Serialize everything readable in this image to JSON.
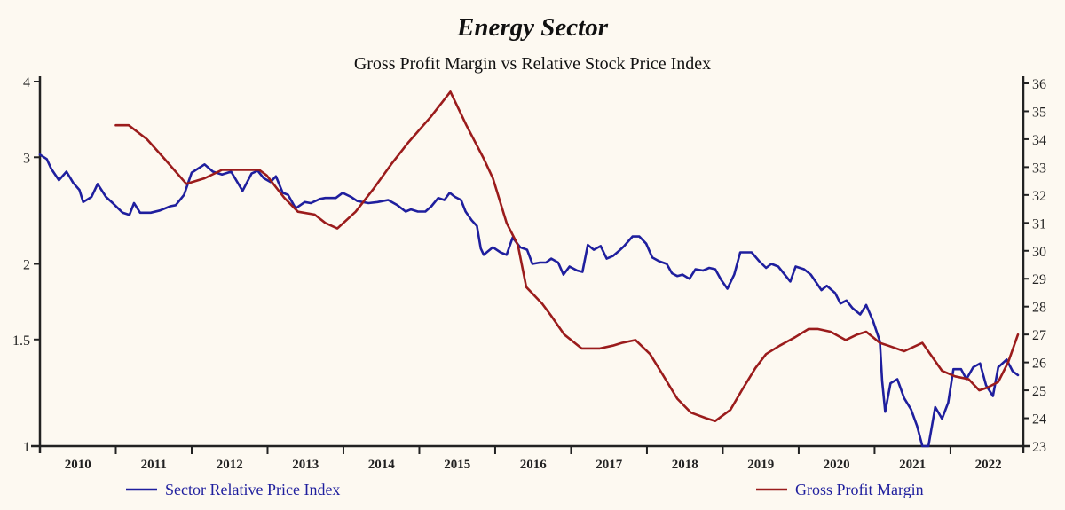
{
  "chart_data": {
    "type": "line",
    "title": "Energy Sector",
    "subtitle": "Gross Profit Margin vs Relative Stock Price Index",
    "xlabel": "",
    "x_range": [
      2010,
      2022.96
    ],
    "x_tick_labels": [
      "2010",
      "2011",
      "2012",
      "2013",
      "2014",
      "2015",
      "2016",
      "2017",
      "2018",
      "2019",
      "2020",
      "2021",
      "2022"
    ],
    "y_left": {
      "label": "",
      "scale": "log",
      "range": [
        1,
        4
      ],
      "ticks": [
        1,
        1.5,
        2,
        3,
        4
      ],
      "tick_labels": [
        "1",
        "1.5",
        "2",
        "3",
        "4"
      ]
    },
    "y_right": {
      "label": "",
      "scale": "linear",
      "range": [
        23,
        36
      ],
      "ticks": [
        23,
        24,
        25,
        26,
        27,
        28,
        29,
        30,
        31,
        32,
        33,
        34,
        35,
        36
      ],
      "tick_labels": [
        "23",
        "24",
        "25",
        "26",
        "27",
        "28",
        "29",
        "30",
        "31",
        "32",
        "33",
        "34",
        "35",
        "36"
      ]
    },
    "grid": false,
    "legend_placement": "bottom",
    "series": [
      {
        "name": "Sector Relative Price Index",
        "axis": "left",
        "color": "#1f1f9e",
        "points": [
          [
            2010.0,
            3.03
          ],
          [
            2010.09,
            2.98
          ],
          [
            2010.15,
            2.87
          ],
          [
            2010.25,
            2.75
          ],
          [
            2010.35,
            2.84
          ],
          [
            2010.44,
            2.72
          ],
          [
            2010.52,
            2.65
          ],
          [
            2010.57,
            2.53
          ],
          [
            2010.68,
            2.58
          ],
          [
            2010.76,
            2.71
          ],
          [
            2010.87,
            2.58
          ],
          [
            2010.96,
            2.52
          ],
          [
            2011.09,
            2.43
          ],
          [
            2011.18,
            2.41
          ],
          [
            2011.24,
            2.52
          ],
          [
            2011.32,
            2.43
          ],
          [
            2011.46,
            2.43
          ],
          [
            2011.58,
            2.45
          ],
          [
            2011.72,
            2.49
          ],
          [
            2011.79,
            2.5
          ],
          [
            2011.9,
            2.6
          ],
          [
            2012.0,
            2.83
          ],
          [
            2012.17,
            2.92
          ],
          [
            2012.28,
            2.84
          ],
          [
            2012.4,
            2.81
          ],
          [
            2012.52,
            2.84
          ],
          [
            2012.67,
            2.64
          ],
          [
            2012.79,
            2.82
          ],
          [
            2012.87,
            2.85
          ],
          [
            2012.95,
            2.77
          ],
          [
            2013.04,
            2.73
          ],
          [
            2013.11,
            2.79
          ],
          [
            2013.2,
            2.62
          ],
          [
            2013.27,
            2.6
          ],
          [
            2013.37,
            2.47
          ],
          [
            2013.49,
            2.53
          ],
          [
            2013.57,
            2.52
          ],
          [
            2013.69,
            2.56
          ],
          [
            2013.76,
            2.57
          ],
          [
            2013.9,
            2.57
          ],
          [
            2013.99,
            2.62
          ],
          [
            2014.1,
            2.58
          ],
          [
            2014.18,
            2.54
          ],
          [
            2014.33,
            2.52
          ],
          [
            2014.45,
            2.53
          ],
          [
            2014.59,
            2.55
          ],
          [
            2014.71,
            2.5
          ],
          [
            2014.82,
            2.44
          ],
          [
            2014.89,
            2.46
          ],
          [
            2014.98,
            2.44
          ],
          [
            2015.08,
            2.44
          ],
          [
            2015.16,
            2.49
          ],
          [
            2015.25,
            2.57
          ],
          [
            2015.33,
            2.55
          ],
          [
            2015.4,
            2.62
          ],
          [
            2015.47,
            2.58
          ],
          [
            2015.55,
            2.55
          ],
          [
            2015.61,
            2.44
          ],
          [
            2015.69,
            2.36
          ],
          [
            2015.76,
            2.31
          ],
          [
            2015.81,
            2.12
          ],
          [
            2015.85,
            2.07
          ],
          [
            2015.97,
            2.13
          ],
          [
            2016.07,
            2.09
          ],
          [
            2016.15,
            2.07
          ],
          [
            2016.23,
            2.21
          ],
          [
            2016.33,
            2.13
          ],
          [
            2016.42,
            2.11
          ],
          [
            2016.49,
            2.0
          ],
          [
            2016.59,
            2.01
          ],
          [
            2016.67,
            2.01
          ],
          [
            2016.74,
            2.04
          ],
          [
            2016.83,
            2.01
          ],
          [
            2016.9,
            1.92
          ],
          [
            2016.98,
            1.98
          ],
          [
            2017.08,
            1.95
          ],
          [
            2017.15,
            1.94
          ],
          [
            2017.22,
            2.15
          ],
          [
            2017.3,
            2.11
          ],
          [
            2017.39,
            2.14
          ],
          [
            2017.47,
            2.04
          ],
          [
            2017.55,
            2.06
          ],
          [
            2017.63,
            2.1
          ],
          [
            2017.7,
            2.14
          ],
          [
            2017.81,
            2.22
          ],
          [
            2017.9,
            2.22
          ],
          [
            2017.99,
            2.16
          ],
          [
            2018.07,
            2.05
          ],
          [
            2018.16,
            2.02
          ],
          [
            2018.26,
            2.0
          ],
          [
            2018.33,
            1.93
          ],
          [
            2018.4,
            1.91
          ],
          [
            2018.47,
            1.92
          ],
          [
            2018.56,
            1.89
          ],
          [
            2018.64,
            1.96
          ],
          [
            2018.74,
            1.95
          ],
          [
            2018.82,
            1.97
          ],
          [
            2018.9,
            1.96
          ],
          [
            2018.98,
            1.88
          ],
          [
            2019.06,
            1.82
          ],
          [
            2019.15,
            1.92
          ],
          [
            2019.23,
            2.09
          ],
          [
            2019.38,
            2.09
          ],
          [
            2019.48,
            2.02
          ],
          [
            2019.57,
            1.97
          ],
          [
            2019.64,
            2.0
          ],
          [
            2019.73,
            1.98
          ],
          [
            2019.89,
            1.87
          ],
          [
            2019.96,
            1.98
          ],
          [
            2020.07,
            1.96
          ],
          [
            2020.16,
            1.92
          ],
          [
            2020.3,
            1.81
          ],
          [
            2020.37,
            1.84
          ],
          [
            2020.48,
            1.79
          ],
          [
            2020.55,
            1.72
          ],
          [
            2020.63,
            1.74
          ],
          [
            2020.71,
            1.69
          ],
          [
            2020.81,
            1.65
          ],
          [
            2020.89,
            1.71
          ],
          [
            2020.98,
            1.61
          ],
          [
            2021.07,
            1.49
          ],
          [
            2021.1,
            1.28
          ],
          [
            2021.14,
            1.14
          ],
          [
            2021.21,
            1.27
          ],
          [
            2021.3,
            1.29
          ],
          [
            2021.39,
            1.2
          ],
          [
            2021.48,
            1.15
          ],
          [
            2021.56,
            1.08
          ],
          [
            2021.63,
            1.0
          ],
          [
            2021.71,
            1.0
          ],
          [
            2021.8,
            1.16
          ],
          [
            2021.89,
            1.11
          ],
          [
            2021.97,
            1.18
          ],
          [
            2022.04,
            1.34
          ],
          [
            2022.14,
            1.34
          ],
          [
            2022.21,
            1.29
          ],
          [
            2022.3,
            1.35
          ],
          [
            2022.39,
            1.37
          ],
          [
            2022.47,
            1.26
          ],
          [
            2022.56,
            1.21
          ],
          [
            2022.63,
            1.35
          ],
          [
            2022.74,
            1.39
          ],
          [
            2022.82,
            1.33
          ],
          [
            2022.89,
            1.31
          ]
        ]
      },
      {
        "name": "Gross Profit Margin",
        "axis": "right",
        "color": "#9b1c1c",
        "points": [
          [
            2011.0,
            34.5
          ],
          [
            2011.17,
            34.5
          ],
          [
            2011.41,
            34.0
          ],
          [
            2011.64,
            33.3
          ],
          [
            2011.93,
            32.4
          ],
          [
            2012.17,
            32.6
          ],
          [
            2012.4,
            32.9
          ],
          [
            2012.58,
            32.9
          ],
          [
            2012.89,
            32.9
          ],
          [
            2012.99,
            32.7
          ],
          [
            2013.22,
            31.9
          ],
          [
            2013.4,
            31.4
          ],
          [
            2013.62,
            31.3
          ],
          [
            2013.76,
            31.0
          ],
          [
            2013.92,
            30.8
          ],
          [
            2014.16,
            31.4
          ],
          [
            2014.39,
            32.2
          ],
          [
            2014.63,
            33.1
          ],
          [
            2014.86,
            33.9
          ],
          [
            2015.15,
            34.8
          ],
          [
            2015.41,
            35.7
          ],
          [
            2015.62,
            34.5
          ],
          [
            2015.85,
            33.3
          ],
          [
            2015.97,
            32.6
          ],
          [
            2016.15,
            31.0
          ],
          [
            2016.3,
            30.2
          ],
          [
            2016.41,
            28.7
          ],
          [
            2016.62,
            28.1
          ],
          [
            2016.73,
            27.7
          ],
          [
            2016.91,
            27.0
          ],
          [
            2017.14,
            26.5
          ],
          [
            2017.38,
            26.5
          ],
          [
            2017.55,
            26.6
          ],
          [
            2017.67,
            26.7
          ],
          [
            2017.85,
            26.8
          ],
          [
            2018.04,
            26.3
          ],
          [
            2018.2,
            25.6
          ],
          [
            2018.4,
            24.7
          ],
          [
            2018.58,
            24.2
          ],
          [
            2018.78,
            24.0
          ],
          [
            2018.9,
            23.9
          ],
          [
            2019.1,
            24.3
          ],
          [
            2019.25,
            25.0
          ],
          [
            2019.43,
            25.8
          ],
          [
            2019.57,
            26.3
          ],
          [
            2019.75,
            26.6
          ],
          [
            2019.95,
            26.9
          ],
          [
            2020.13,
            27.2
          ],
          [
            2020.25,
            27.2
          ],
          [
            2020.42,
            27.1
          ],
          [
            2020.62,
            26.8
          ],
          [
            2020.77,
            27.0
          ],
          [
            2020.89,
            27.1
          ],
          [
            2021.07,
            26.7
          ],
          [
            2021.18,
            26.6
          ],
          [
            2021.39,
            26.4
          ],
          [
            2021.63,
            26.7
          ],
          [
            2021.89,
            25.7
          ],
          [
            2022.06,
            25.5
          ],
          [
            2022.24,
            25.4
          ],
          [
            2022.38,
            25.0
          ],
          [
            2022.49,
            25.1
          ],
          [
            2022.63,
            25.3
          ],
          [
            2022.76,
            26.0
          ],
          [
            2022.89,
            27.0
          ]
        ]
      }
    ],
    "legend": [
      {
        "label": "Sector Relative Price Index",
        "color": "#1f1f9e",
        "text_color": "#1f1f9e"
      },
      {
        "label": "Gross Profit Margin",
        "color": "#9b1c1c",
        "text_color": "#1f1f9e"
      }
    ]
  }
}
